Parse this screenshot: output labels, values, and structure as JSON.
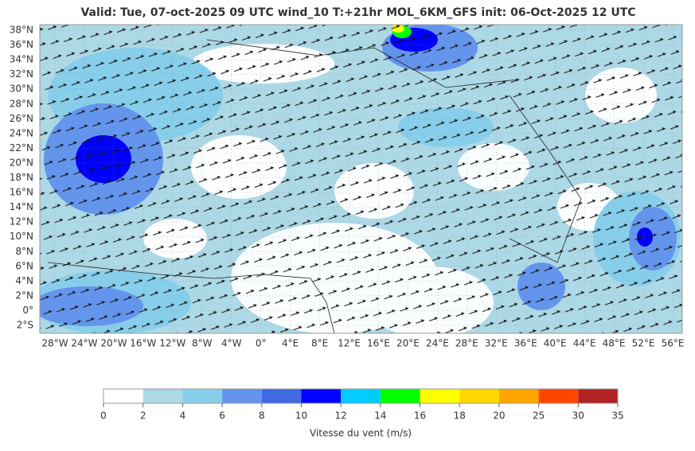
{
  "title": "Valid: Tue, 07-oct-2025   09 UTC   wind_10   T:+21hr   MOL_6KM_GFS   init: 06-Oct-2025    12 UTC",
  "lat_labels": [
    "38°N",
    "36°N",
    "34°N",
    "32°N",
    "30°N",
    "28°N",
    "26°N",
    "24°N",
    "22°N",
    "20°N",
    "18°N",
    "16°N",
    "14°N",
    "12°N",
    "10°N",
    "8°N",
    "6°N",
    "4°N",
    "2°N",
    "0°",
    "2°S"
  ],
  "lon_labels": [
    "28°W",
    "24°W",
    "20°W",
    "16°W",
    "12°W",
    "8°W",
    "4°W",
    "0°",
    "4°E",
    "8°E",
    "12°E",
    "16°E",
    "20°E",
    "24°E",
    "28°E",
    "32°E",
    "36°E",
    "40°E",
    "44°E",
    "48°E",
    "52°E",
    "56°E"
  ],
  "colorbar": {
    "label": "Vitesse du vent (m/s)",
    "ticks": [
      0,
      2,
      4,
      6,
      8,
      10,
      12,
      14,
      16,
      18,
      20,
      25,
      30,
      35
    ],
    "colors": [
      "#ffffff",
      "#add8e6",
      "#87ceeb",
      "#6495ed",
      "#4169e1",
      "#0000ff",
      "#00ccff",
      "#00ff00",
      "#ffff00",
      "#ffd700",
      "#ffa500",
      "#ff4500",
      "#b22222"
    ]
  }
}
